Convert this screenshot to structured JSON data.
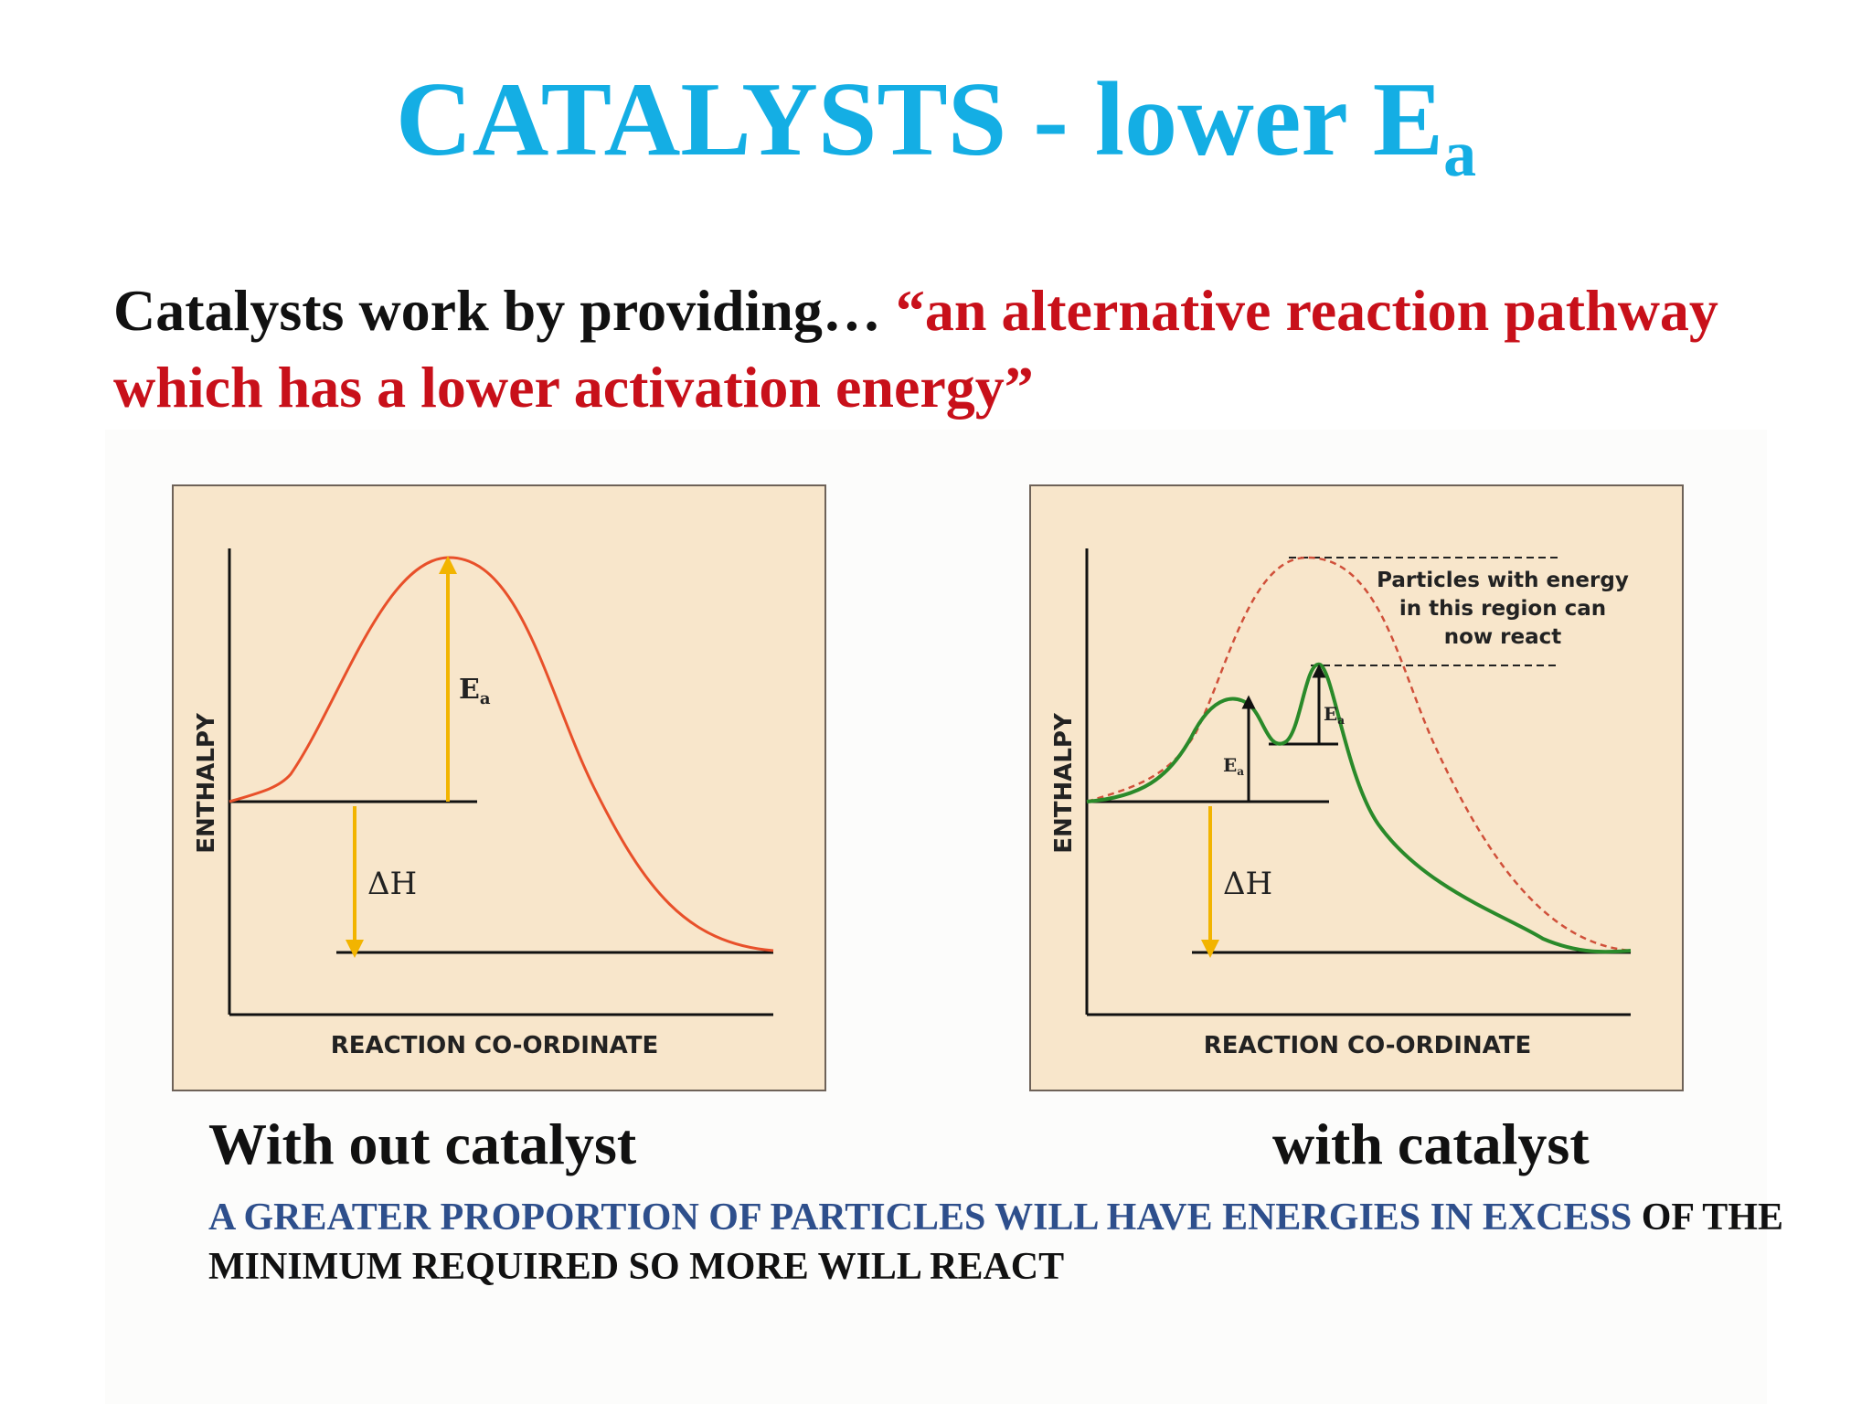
{
  "slide": {
    "title": "CATALYSTS - lower E",
    "title_subscript": "a",
    "intro_lead": "Catalysts work by providing… ",
    "intro_quote": "“an alternative reaction pathway which has a lower activation energy”",
    "caption_left": "With out catalyst",
    "caption_right": "with catalyst",
    "note_blue": "A GREATER PROPORTION OF PARTICLES WILL HAVE ENERGIES IN EXCESS",
    "note_black": " OF THE MINIMUM REQUIRED SO MORE WILL REACT"
  },
  "diagrams": {
    "left": {
      "y_axis_label": "ENTHALPY",
      "x_axis_label": "REACTION CO-ORDINATE",
      "ea_label": "E",
      "ea_sub": "a",
      "dh_label": "ΔH"
    },
    "right": {
      "y_axis_label": "ENTHALPY",
      "x_axis_label": "REACTION CO-ORDINATE",
      "ea_label_1": "E",
      "ea_sub_1": "a",
      "ea_label_2": "E",
      "ea_sub_2": "a",
      "dh_label": "ΔH",
      "annotation_lines": [
        "Particles with energy",
        "in this region can",
        "now react"
      ]
    }
  },
  "colors": {
    "title": "#14aee4",
    "quote": "#c8101a",
    "note_blue": "#2e4f8c",
    "panel_bg": "#f8e6cb",
    "uncatalysed_curve": "#e8502a",
    "catalysed_curve": "#2a8a2a",
    "arrow": "#f2b400"
  }
}
